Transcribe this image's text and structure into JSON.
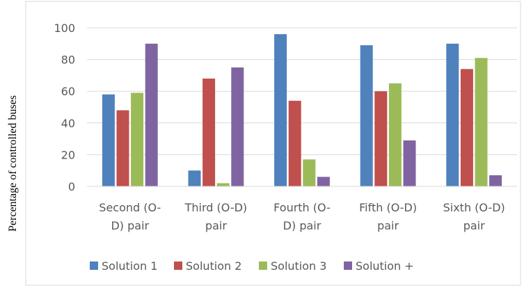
{
  "chart_data": {
    "type": "bar",
    "ylabel": "Percentage of controlled buses",
    "xlabel": "",
    "title": "",
    "ylim": [
      0,
      100
    ],
    "yticks": [
      0,
      20,
      40,
      60,
      80,
      100
    ],
    "grid": true,
    "legend_position": "bottom",
    "categories": [
      [
        "Second (O-",
        "D) pair"
      ],
      [
        "Third (O-D)",
        "pair"
      ],
      [
        "Fourth (O-",
        "D) pair"
      ],
      [
        "Fifth (O-D)",
        "pair"
      ],
      [
        "Sixth (O-D)",
        "pair"
      ]
    ],
    "series": [
      {
        "name": "Solution 1",
        "color": "#4F81BD",
        "values": [
          58,
          10,
          96,
          89,
          90
        ]
      },
      {
        "name": "Solution 2",
        "color": "#C0504D",
        "values": [
          48,
          68,
          54,
          60,
          74
        ]
      },
      {
        "name": "Solution 3",
        "color": "#9BBB59",
        "values": [
          59,
          2,
          17,
          65,
          81
        ]
      },
      {
        "name": "Solution +",
        "color": "#8064A2",
        "values": [
          90,
          75,
          6,
          29,
          7
        ]
      }
    ]
  }
}
